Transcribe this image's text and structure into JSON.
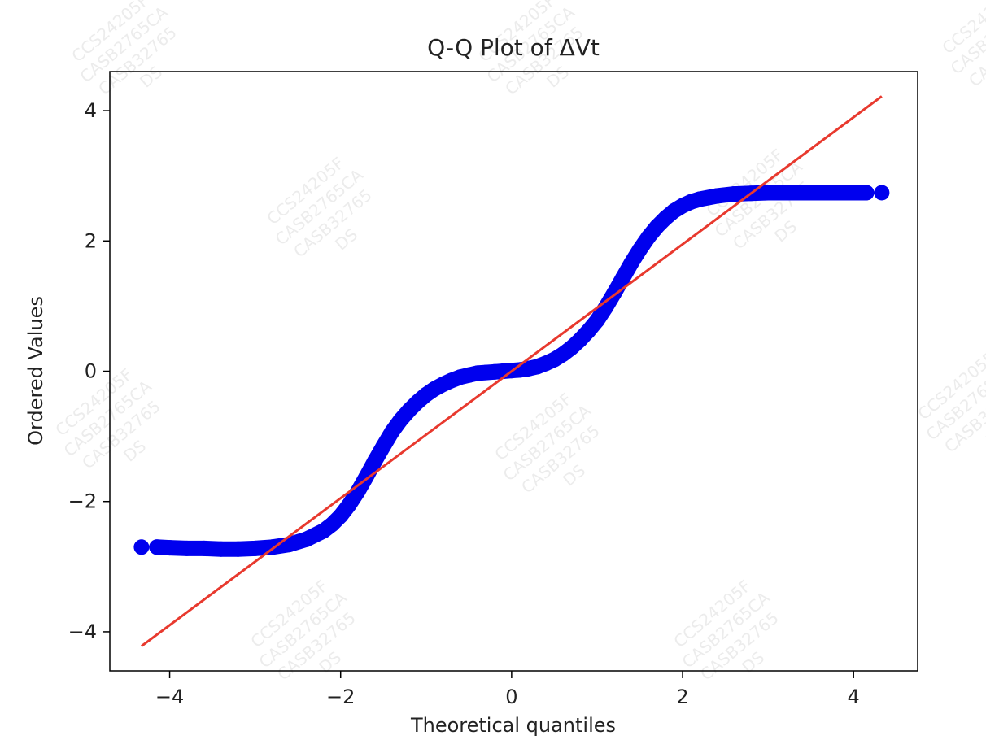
{
  "chart_data": {
    "type": "scatter",
    "title": "Q-Q Plot of ΔVt",
    "xlabel": "Theoretical quantiles",
    "ylabel": "Ordered Values",
    "xlim": [
      -4.7,
      4.75
    ],
    "ylim": [
      -4.6,
      4.6
    ],
    "xticks": [
      -4,
      -2,
      0,
      2,
      4
    ],
    "yticks": [
      -4,
      -2,
      0,
      2,
      4
    ],
    "xtick_labels": [
      "−4",
      "−2",
      "0",
      "2",
      "4"
    ],
    "ytick_labels": [
      "−4",
      "−2",
      "0",
      "2",
      "4"
    ],
    "grid": false,
    "legend": false,
    "series": [
      {
        "kind": "points",
        "color": "#0000ee",
        "x": [
          -4.33,
          -4.15,
          -4.0,
          -3.8,
          -3.6,
          -3.4,
          -3.2,
          -3.0,
          -2.8,
          -2.6,
          -2.4,
          -2.2,
          -2.1,
          -2.0,
          -1.9,
          -1.8,
          -1.7,
          -1.6,
          -1.5,
          -1.4,
          -1.3,
          -1.2,
          -1.1,
          -1.0,
          -0.9,
          -0.8,
          -0.7,
          -0.6,
          -0.5,
          -0.4,
          -0.3,
          -0.2,
          -0.1,
          0.0,
          0.1,
          0.2,
          0.3,
          0.4,
          0.5,
          0.6,
          0.7,
          0.8,
          0.9,
          1.0,
          1.1,
          1.2,
          1.3,
          1.4,
          1.5,
          1.6,
          1.7,
          1.8,
          1.9,
          2.0,
          2.1,
          2.2,
          2.4,
          2.6,
          2.8,
          3.0,
          3.2,
          3.4,
          3.6,
          3.8,
          4.0,
          4.15,
          4.33
        ],
        "y": [
          -2.7,
          -2.7,
          -2.71,
          -2.72,
          -2.72,
          -2.73,
          -2.73,
          -2.72,
          -2.7,
          -2.66,
          -2.58,
          -2.45,
          -2.35,
          -2.22,
          -2.05,
          -1.85,
          -1.62,
          -1.38,
          -1.15,
          -0.93,
          -0.75,
          -0.6,
          -0.47,
          -0.36,
          -0.27,
          -0.2,
          -0.14,
          -0.09,
          -0.06,
          -0.03,
          -0.02,
          -0.01,
          0.0,
          0.01,
          0.02,
          0.04,
          0.07,
          0.12,
          0.18,
          0.26,
          0.36,
          0.48,
          0.62,
          0.78,
          0.98,
          1.2,
          1.43,
          1.66,
          1.87,
          2.06,
          2.22,
          2.35,
          2.46,
          2.54,
          2.6,
          2.64,
          2.69,
          2.72,
          2.73,
          2.74,
          2.74,
          2.74,
          2.74,
          2.74,
          2.74,
          2.74,
          2.74
        ]
      },
      {
        "kind": "fit-line",
        "color": "#e8392e",
        "x": [
          -4.33,
          4.33
        ],
        "y": [
          -4.22,
          4.22
        ]
      }
    ],
    "watermark_texts": [
      "CCS24205F",
      "CASB2765CA",
      "CASB32765",
      "DS"
    ]
  }
}
